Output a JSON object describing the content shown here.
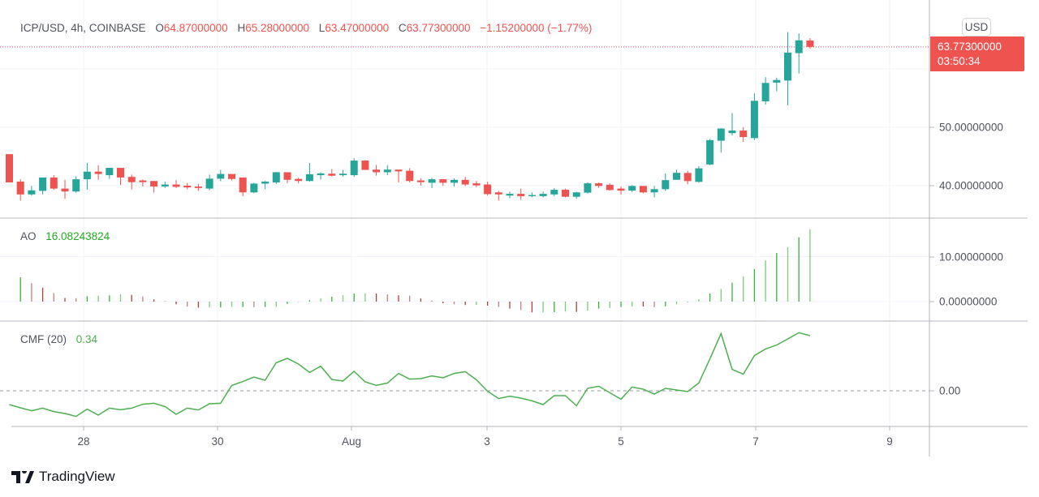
{
  "header": {
    "symbol": "ICP/USD, 4h, COINBASE",
    "open_label": "O",
    "open": "64.87000000",
    "high_label": "H",
    "high": "65.28000000",
    "low_label": "L",
    "low": "63.47000000",
    "close_label": "C",
    "close": "63.77300000",
    "change": "−1.15200000 (−1.77%)"
  },
  "price_scale": {
    "currency_button": "USD",
    "last_price": "63.77300000",
    "countdown": "03:50:34",
    "ticks": [
      "50.00000000",
      "40.00000000"
    ]
  },
  "ao": {
    "label": "AO",
    "value": "16.08243824",
    "ticks": [
      "10.00000000",
      "0.00000000"
    ]
  },
  "cmf": {
    "label": "CMF (20)",
    "value": "0.34",
    "ticks": [
      "0.00"
    ]
  },
  "time_axis": {
    "labels": [
      "28",
      "30",
      "Aug",
      "3",
      "5",
      "7",
      "9"
    ]
  },
  "branding": {
    "logo_text": "TradingView"
  },
  "colors": {
    "up": "#26a69a",
    "down": "#ef5350",
    "ao_up": "#22ab22",
    "ao_down": "#a52a2a",
    "cmf_line": "#4caf50"
  },
  "chart_data": [
    {
      "type": "candlestick",
      "title": "ICP/USD, 4h, COINBASE",
      "ylim": [
        36,
        68
      ],
      "yticks": [
        40,
        50
      ],
      "grid": true,
      "ohlc": [
        [
          45.4,
          45.4,
          40.55,
          40.55
        ],
        [
          40.7,
          41.1,
          37.45,
          38.5
        ],
        [
          38.5,
          39.95,
          38.3,
          39.2
        ],
        [
          39.1,
          41.4,
          38.5,
          41.4
        ],
        [
          41.4,
          41.8,
          39.3,
          39.5
        ],
        [
          39.5,
          41.0,
          37.7,
          39.0
        ],
        [
          39.0,
          41.6,
          38.8,
          41.1
        ],
        [
          41.1,
          43.9,
          39.3,
          42.4
        ],
        [
          42.4,
          43.5,
          41.0,
          42.0
        ],
        [
          41.8,
          43.05,
          41.15,
          43.05
        ],
        [
          43.05,
          43.05,
          40.1,
          41.4
        ],
        [
          41.5,
          41.9,
          39.35,
          40.6
        ],
        [
          40.9,
          41.05,
          39.85,
          40.6
        ],
        [
          40.8,
          40.8,
          38.8,
          39.85
        ],
        [
          39.85,
          40.7,
          39.6,
          40.2
        ],
        [
          40.2,
          40.95,
          39.6,
          39.8
        ],
        [
          40.0,
          40.45,
          39.4,
          39.7
        ],
        [
          39.85,
          40.3,
          39.1,
          39.6
        ],
        [
          39.5,
          41.9,
          39.2,
          41.2
        ],
        [
          41.2,
          42.7,
          40.8,
          42.0
        ],
        [
          42.0,
          42.0,
          40.9,
          41.15
        ],
        [
          41.4,
          41.4,
          38.2,
          38.85
        ],
        [
          38.85,
          40.5,
          38.7,
          40.35
        ],
        [
          40.35,
          40.8,
          39.4,
          40.7
        ],
        [
          40.55,
          42.35,
          40.3,
          42.3
        ],
        [
          42.3,
          42.3,
          40.4,
          41.0
        ],
        [
          41.15,
          41.35,
          40.4,
          40.8
        ],
        [
          40.8,
          43.9,
          40.7,
          41.95
        ],
        [
          41.8,
          42.3,
          41.05,
          42.1
        ],
        [
          42.05,
          42.85,
          41.6,
          41.7
        ],
        [
          41.8,
          42.7,
          41.55,
          42.05
        ],
        [
          41.8,
          44.7,
          41.5,
          44.3
        ],
        [
          44.3,
          44.4,
          42.7,
          42.7
        ],
        [
          42.75,
          43.55,
          41.7,
          42.3
        ],
        [
          42.3,
          43.5,
          41.8,
          42.75
        ],
        [
          42.75,
          42.75,
          40.55,
          42.45
        ],
        [
          42.55,
          43.0,
          40.55,
          40.8
        ],
        [
          40.9,
          41.25,
          40.0,
          40.6
        ],
        [
          40.5,
          41.35,
          39.6,
          41.1
        ],
        [
          41.1,
          41.1,
          39.95,
          40.5
        ],
        [
          40.5,
          41.25,
          39.85,
          41.0
        ],
        [
          41.0,
          41.5,
          39.95,
          40.2
        ],
        [
          40.4,
          40.8,
          39.75,
          40.05
        ],
        [
          40.2,
          40.65,
          38.3,
          38.55
        ],
        [
          38.85,
          39.1,
          37.45,
          38.5
        ],
        [
          38.3,
          38.95,
          37.85,
          38.6
        ],
        [
          38.6,
          39.5,
          37.55,
          38.2
        ],
        [
          38.2,
          38.85,
          38.0,
          38.4
        ],
        [
          38.2,
          39.0,
          38.0,
          38.6
        ],
        [
          38.5,
          39.6,
          38.2,
          39.3
        ],
        [
          39.3,
          39.5,
          38.0,
          38.1
        ],
        [
          38.1,
          38.95,
          37.75,
          38.85
        ],
        [
          38.8,
          40.55,
          38.65,
          40.4
        ],
        [
          40.4,
          40.55,
          39.6,
          39.95
        ],
        [
          40.15,
          40.4,
          39.15,
          39.25
        ],
        [
          39.5,
          39.85,
          38.45,
          39.15
        ],
        [
          39.15,
          40.1,
          38.9,
          39.95
        ],
        [
          39.95,
          39.95,
          38.7,
          38.85
        ],
        [
          38.85,
          39.95,
          38.0,
          39.4
        ],
        [
          39.4,
          42.1,
          39.1,
          40.95
        ],
        [
          41.0,
          42.7,
          41.0,
          42.2
        ],
        [
          42.18,
          42.55,
          40.23,
          40.79
        ],
        [
          40.65,
          43.34,
          40.5,
          42.97
        ],
        [
          43.63,
          48.0,
          43.5,
          47.8
        ],
        [
          47.7,
          49.84,
          45.63,
          49.79
        ],
        [
          49.0,
          52.45,
          48.6,
          49.44
        ],
        [
          49.44,
          50.04,
          47.5,
          48.33
        ],
        [
          48.15,
          55.8,
          47.8,
          54.54
        ],
        [
          54.45,
          58.6,
          53.9,
          57.6
        ],
        [
          57.65,
          58.5,
          56.16,
          58.1
        ],
        [
          58.0,
          66.3,
          53.75,
          62.8
        ],
        [
          62.7,
          66.1,
          59.2,
          64.9
        ],
        [
          64.87,
          65.28,
          63.47,
          63.773
        ]
      ],
      "ohlc_order": [
        "open",
        "high",
        "low",
        "close"
      ],
      "last_price": 63.773
    },
    {
      "type": "bar",
      "title": "AO",
      "yticks": [
        0,
        10
      ],
      "values": [
        null,
        5.4,
        4.1,
        3.1,
        1.9,
        0.8,
        0.75,
        1.2,
        1.3,
        1.4,
        1.6,
        1.5,
        1.15,
        0.5,
        0.1,
        -0.6,
        -1.1,
        -1.35,
        -1.3,
        -1.3,
        -1.2,
        -1.2,
        -1.25,
        -1.2,
        -1.15,
        -0.5,
        -0.1,
        0.3,
        0.7,
        1.1,
        1.4,
        1.8,
        1.85,
        1.8,
        1.6,
        1.4,
        1.3,
        0.7,
        0.25,
        -0.35,
        -0.6,
        -0.75,
        -0.75,
        -0.9,
        -1.2,
        -1.55,
        -1.9,
        -2.4,
        -2.4,
        -2.35,
        -2.2,
        -2.3,
        -2.0,
        -1.55,
        -1.4,
        -1.2,
        -1.05,
        -1.1,
        -1.25,
        -1.05,
        -0.6,
        -0.1,
        0.55,
        1.8,
        2.8,
        4.2,
        5.6,
        7.25,
        9.15,
        10.8,
        12.1,
        14.3,
        16.08
      ]
    },
    {
      "type": "line",
      "title": "CMF (20)",
      "yticks": [
        0
      ],
      "zero_line": "dashed",
      "values": [
        -0.085,
        -0.105,
        -0.123,
        -0.107,
        -0.128,
        -0.14,
        -0.158,
        -0.113,
        -0.15,
        -0.107,
        -0.117,
        -0.107,
        -0.083,
        -0.077,
        -0.097,
        -0.145,
        -0.107,
        -0.118,
        -0.08,
        -0.077,
        0.033,
        0.057,
        0.085,
        0.065,
        0.173,
        0.2,
        0.165,
        0.113,
        0.152,
        0.07,
        0.06,
        0.12,
        0.055,
        0.033,
        0.048,
        0.107,
        0.072,
        0.075,
        0.092,
        0.08,
        0.107,
        0.118,
        0.068,
        -0.003,
        -0.048,
        -0.033,
        -0.045,
        -0.062,
        -0.085,
        -0.03,
        -0.03,
        -0.092,
        0.015,
        0.028,
        -0.012,
        -0.052,
        0.023,
        0.01,
        -0.02,
        0.015,
        0.005,
        -0.005,
        0.048,
        0.197,
        0.353,
        0.132,
        0.102,
        0.217,
        0.258,
        0.282,
        0.32,
        0.358,
        0.34
      ]
    }
  ]
}
